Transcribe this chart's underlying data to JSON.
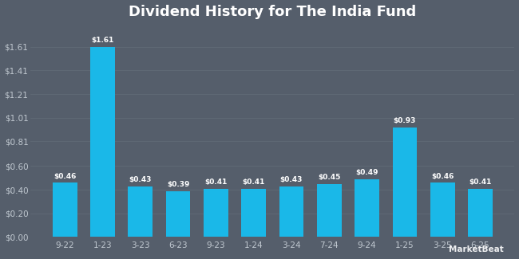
{
  "title": "Dividend History for The India Fund",
  "categories": [
    "9-22",
    "1-23",
    "3-23",
    "6-23",
    "9-23",
    "1-24",
    "3-24",
    "7-24",
    "9-24",
    "1-25",
    "3-25",
    "6-25"
  ],
  "values": [
    0.46,
    1.61,
    0.43,
    0.39,
    0.41,
    0.41,
    0.43,
    0.45,
    0.49,
    0.93,
    0.46,
    0.41
  ],
  "bar_color": "#1ab8e8",
  "background_color": "#555e6b",
  "plot_bg_color": "#555e6b",
  "title_color": "#ffffff",
  "label_color": "#ffffff",
  "tick_color": "#c0c8d0",
  "grid_color": "#636d78",
  "ylim": [
    0.0,
    1.8
  ],
  "yticks": [
    0.0,
    0.2,
    0.4,
    0.6,
    0.81,
    1.01,
    1.21,
    1.41,
    1.61
  ],
  "title_fontsize": 13,
  "bar_label_fontsize": 6.5,
  "tick_fontsize": 7.5,
  "watermark": "MarketBeat"
}
